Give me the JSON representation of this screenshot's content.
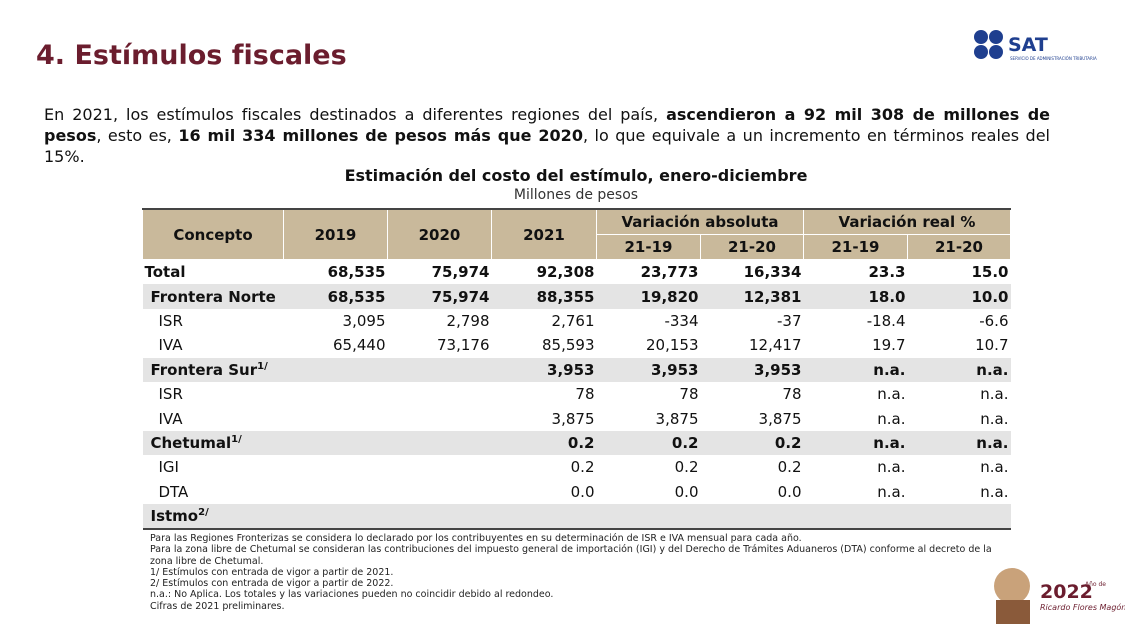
{
  "header": {
    "title": "4. Estímulos fiscales",
    "logo": "SAT",
    "logo_subtitle": "SERVICIO DE ADMINISTRACIÓN TRIBUTARIA"
  },
  "intro": {
    "segments": [
      {
        "text": "En 2021, los estímulos fiscales destinados a diferentes regiones del país, ",
        "bold": false
      },
      {
        "text": "ascendieron a 92 mil 308 de millones de pesos",
        "bold": true
      },
      {
        "text": ", esto es, ",
        "bold": false
      },
      {
        "text": "16 mil 334 millones de pesos más que 2020",
        "bold": true
      },
      {
        "text": ", lo que equivale a un incremento en términos reales del 15%.",
        "bold": false
      }
    ]
  },
  "table": {
    "title": "Estimación del costo del estímulo, enero-diciembre",
    "subtitle": "Millones de pesos",
    "header": {
      "concept": "Concepto",
      "years": [
        "2019",
        "2020",
        "2021"
      ],
      "groups": [
        {
          "label": "Variación absoluta",
          "sub": [
            "21-19",
            "21-20"
          ]
        },
        {
          "label": "Variación real %",
          "sub": [
            "21-19",
            "21-20"
          ]
        }
      ]
    },
    "rows": [
      {
        "label": "Total",
        "sup": null,
        "kind": "total",
        "cells": [
          "68,535",
          "75,974",
          "92,308",
          "23,773",
          "16,334",
          "23.3",
          "15.0"
        ]
      },
      {
        "label": "Frontera Norte",
        "sup": null,
        "kind": "group",
        "cells": [
          "68,535",
          "75,974",
          "88,355",
          "19,820",
          "12,381",
          "18.0",
          "10.0"
        ]
      },
      {
        "label": "ISR",
        "sup": null,
        "kind": "item",
        "cells": [
          "3,095",
          "2,798",
          "2,761",
          "-334",
          "-37",
          "-18.4",
          "-6.6"
        ]
      },
      {
        "label": "IVA",
        "sup": null,
        "kind": "item",
        "cells": [
          "65,440",
          "73,176",
          "85,593",
          "20,153",
          "12,417",
          "19.7",
          "10.7"
        ]
      },
      {
        "label": "Frontera Sur",
        "sup": "1/",
        "kind": "group",
        "cells": [
          null,
          null,
          "3,953",
          "3,953",
          "3,953",
          "n.a.",
          "n.a."
        ]
      },
      {
        "label": "ISR",
        "sup": null,
        "kind": "item",
        "cells": [
          null,
          null,
          "78",
          "78",
          "78",
          "n.a.",
          "n.a."
        ]
      },
      {
        "label": "IVA",
        "sup": null,
        "kind": "item",
        "cells": [
          null,
          null,
          "3,875",
          "3,875",
          "3,875",
          "n.a.",
          "n.a."
        ]
      },
      {
        "label": "Chetumal",
        "sup": "1/",
        "kind": "group",
        "cells": [
          null,
          null,
          "0.2",
          "0.2",
          "0.2",
          "n.a.",
          "n.a."
        ]
      },
      {
        "label": "IGI",
        "sup": null,
        "kind": "item",
        "cells": [
          null,
          null,
          "0.2",
          "0.2",
          "0.2",
          "n.a.",
          "n.a."
        ]
      },
      {
        "label": "DTA",
        "sup": null,
        "kind": "item",
        "cells": [
          null,
          null,
          "0.0",
          "0.0",
          "0.0",
          "n.a.",
          "n.a."
        ]
      },
      {
        "label": "Istmo",
        "sup": "2/",
        "kind": "group",
        "cells": [
          null,
          null,
          null,
          null,
          null,
          null,
          null
        ]
      }
    ]
  },
  "notes": [
    "Para las Regiones Fronterizas se considera lo declarado por los contribuyentes en su determinación de ISR e IVA mensual para cada año.",
    "Para la zona libre de Chetumal se consideran las contribuciones del impuesto general de importación (IGI) y del Derecho de Trámites Aduaneros (DTA) conforme al decreto de la zona libre de Chetumal.",
    "1/ Estímulos con entrada de vigor a partir de 2021.",
    "2/ Estímulos con entrada de vigor a partir de 2022.",
    "n.a.: No Aplica. Los totales y las variaciones pueden no coincidir debido al redondeo.",
    "Cifras de 2021 preliminares."
  ],
  "badge": {
    "year": "2022",
    "name": "Ricardo Flores Magón",
    "prefix": "Año de"
  }
}
